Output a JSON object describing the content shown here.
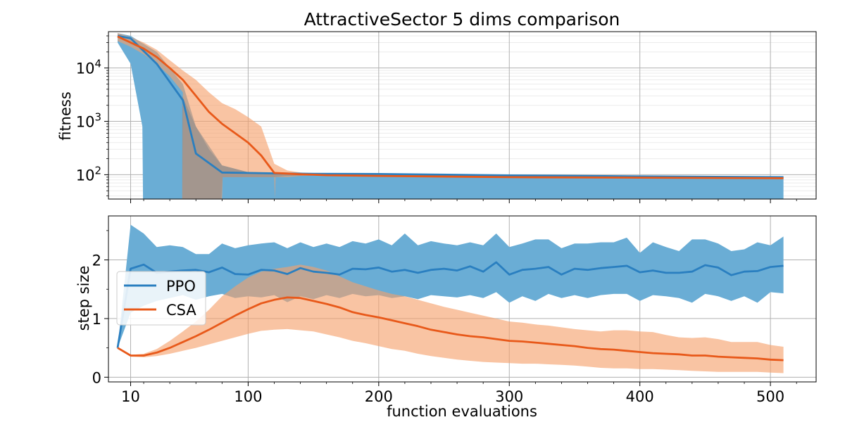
{
  "figure": {
    "title": "AttractiveSector 5 dims comparison",
    "xlabel": "function evaluations"
  },
  "chart_data": [
    {
      "type": "line",
      "name": "fitness panel",
      "ylabel": "fitness",
      "yscale": "log",
      "xlim": [
        -7,
        535
      ],
      "ylim": [
        35,
        48000
      ],
      "xticks": [
        10,
        100,
        200,
        300,
        400,
        500
      ],
      "xtick_labels": [
        "",
        "",
        "",
        "",
        "",
        ""
      ],
      "yticks": [
        100,
        1000,
        10000
      ],
      "ytick_labels": [
        {
          "base": "10",
          "exp": "2"
        },
        {
          "base": "10",
          "exp": "3"
        },
        {
          "base": "10",
          "exp": "4"
        }
      ],
      "grid": true,
      "series": [
        {
          "name": "PPO",
          "color": "#2a7fc0",
          "band_color": "#6aadd5",
          "band_opacity": 1,
          "mean": {
            "x": [
              0,
              10,
              30,
              50,
              60,
              80,
              100,
              120,
              150,
              200,
              300,
              400,
              510
            ],
            "y": [
              40000,
              36000,
              12000,
              2500,
              250,
              110,
              108,
              106,
              104,
              103,
              97,
              93,
              90
            ]
          },
          "upper": {
            "x": [
              0,
              10,
              30,
              50,
              60,
              80,
              100,
              150,
              300,
              510
            ],
            "y": [
              45000,
              40000,
              20000,
              5000,
              800,
              150,
              112,
              106,
              100,
              92
            ]
          },
          "lower": {
            "x": [
              0,
              10,
              19,
              19.5,
              510
            ],
            "y": [
              30000,
              12000,
              800,
              1,
              1
            ]
          }
        },
        {
          "name": "CSA",
          "color": "#e8591a",
          "band_color": "#f59f6b",
          "band_opacity": 0.62,
          "mean": {
            "x": [
              0,
              10,
              20,
              30,
              40,
              50,
              60,
              70,
              80,
              90,
              100,
              110,
              120,
              130,
              140,
              150,
              160,
              200,
              300,
              400,
              510
            ],
            "y": [
              39000,
              30000,
              23000,
              16000,
              10000,
              6000,
              3000,
              1500,
              900,
              600,
              400,
              230,
              108,
              105,
              102,
              100,
              98,
              95,
              90,
              88,
              86
            ]
          },
          "upper": {
            "x": [
              0,
              10,
              20,
              30,
              40,
              50,
              60,
              70,
              80,
              90,
              100,
              110,
              120,
              130,
              140,
              150,
              160,
              200,
              300,
              400,
              510
            ],
            "y": [
              45000,
              38000,
              30000,
              22000,
              14000,
              9000,
              6000,
              3500,
              2200,
              1700,
              1200,
              800,
              160,
              120,
              110,
              105,
              102,
              100,
              95,
              92,
              90
            ]
          },
          "lower": {
            "x": [
              0,
              10,
              20,
              30,
              40,
              50,
              49.5,
              50,
              80,
              80.5,
              81,
              120,
              120.5,
              121,
              130,
              140,
              150,
              160,
              200,
              300,
              400,
              510
            ],
            "y": [
              32000,
              25000,
              18000,
              12000,
              7000,
              3500,
              1,
              1,
              1,
              90,
              90,
              90,
              1,
              90,
              90,
              95,
              97,
              96,
              92,
              88,
              85,
              83
            ]
          }
        }
      ],
      "gray_overlap": {
        "color": "#8a8a8a",
        "opacity": 0.55,
        "upper": {
          "x": [
            49.5,
            60,
            70,
            80,
            100,
            150,
            510
          ],
          "y": [
            3000,
            800,
            300,
            150,
            112,
            106,
            92
          ]
        },
        "lower": {
          "x": [
            49.5,
            79.5,
            80.5,
            100,
            120,
            130,
            150,
            510
          ],
          "y": [
            1,
            1,
            90,
            90,
            90,
            95,
            98,
            85
          ]
        }
      }
    },
    {
      "type": "line",
      "name": "step size panel",
      "ylabel": "step size",
      "yscale": "linear",
      "xlim": [
        -7,
        535
      ],
      "ylim": [
        -0.08,
        2.75
      ],
      "xticks": [
        10,
        100,
        200,
        300,
        400,
        500
      ],
      "xtick_labels": [
        "10",
        "100",
        "200",
        "300",
        "400",
        "500"
      ],
      "yticks": [
        0,
        1,
        2
      ],
      "ytick_labels": [
        "0",
        "1",
        "2"
      ],
      "grid": true,
      "legend": {
        "position": "center-left",
        "entries": [
          "PPO",
          "CSA"
        ]
      },
      "series": [
        {
          "name": "PPO",
          "color": "#2a7fc0",
          "band_color": "#6aadd5",
          "band_opacity": 1,
          "mean": {
            "x": [
              0,
              10,
              20,
              30,
              40,
              50,
              60,
              70,
              80,
              90,
              100,
              110,
              120,
              130,
              140,
              150,
              160,
              170,
              180,
              190,
              200,
              210,
              220,
              230,
              240,
              250,
              260,
              270,
              280,
              290,
              300,
              310,
              320,
              330,
              340,
              350,
              360,
              370,
              380,
              390,
              400,
              410,
              420,
              430,
              440,
              450,
              460,
              470,
              480,
              490,
              500,
              510
            ],
            "y": [
              0.5,
              1.85,
              1.92,
              1.78,
              1.8,
              1.82,
              1.83,
              1.79,
              1.87,
              1.76,
              1.75,
              1.83,
              1.82,
              1.76,
              1.86,
              1.8,
              1.78,
              1.75,
              1.85,
              1.84,
              1.87,
              1.8,
              1.83,
              1.78,
              1.83,
              1.85,
              1.82,
              1.89,
              1.8,
              1.96,
              1.75,
              1.83,
              1.85,
              1.88,
              1.75,
              1.85,
              1.83,
              1.86,
              1.88,
              1.9,
              1.79,
              1.82,
              1.78,
              1.78,
              1.8,
              1.91,
              1.87,
              1.74,
              1.8,
              1.81,
              1.88,
              1.9
            ]
          },
          "upper": {
            "x": [
              0,
              10,
              20,
              30,
              40,
              50,
              60,
              70,
              80,
              90,
              100,
              110,
              120,
              130,
              140,
              150,
              160,
              170,
              180,
              190,
              200,
              210,
              220,
              230,
              240,
              250,
              260,
              270,
              280,
              290,
              300,
              310,
              320,
              330,
              340,
              350,
              360,
              370,
              380,
              390,
              400,
              410,
              420,
              430,
              440,
              450,
              460,
              470,
              480,
              490,
              500,
              510
            ],
            "y": [
              0.5,
              2.6,
              2.45,
              2.22,
              2.25,
              2.22,
              2.1,
              2.1,
              2.28,
              2.2,
              2.25,
              2.28,
              2.3,
              2.2,
              2.3,
              2.22,
              2.28,
              2.22,
              2.32,
              2.28,
              2.35,
              2.25,
              2.45,
              2.25,
              2.32,
              2.28,
              2.25,
              2.3,
              2.25,
              2.45,
              2.22,
              2.28,
              2.35,
              2.35,
              2.2,
              2.28,
              2.28,
              2.3,
              2.3,
              2.38,
              2.12,
              2.3,
              2.22,
              2.15,
              2.35,
              2.35,
              2.28,
              2.15,
              2.18,
              2.3,
              2.25,
              2.4
            ]
          },
          "lower": {
            "x": [
              0,
              10,
              20,
              30,
              40,
              50,
              60,
              70,
              80,
              90,
              100,
              110,
              120,
              130,
              140,
              150,
              160,
              170,
              180,
              190,
              200,
              210,
              220,
              230,
              240,
              250,
              260,
              270,
              280,
              290,
              300,
              310,
              320,
              330,
              340,
              350,
              360,
              370,
              380,
              390,
              400,
              410,
              420,
              430,
              440,
              450,
              460,
              470,
              480,
              490,
              500,
              510
            ],
            "y": [
              0.5,
              1.1,
              1.22,
              1.3,
              1.35,
              1.4,
              1.32,
              1.38,
              1.42,
              1.35,
              1.38,
              1.36,
              1.4,
              1.28,
              1.38,
              1.33,
              1.4,
              1.35,
              1.42,
              1.38,
              1.4,
              1.35,
              1.38,
              1.33,
              1.4,
              1.38,
              1.36,
              1.4,
              1.35,
              1.45,
              1.27,
              1.38,
              1.3,
              1.42,
              1.35,
              1.4,
              1.35,
              1.4,
              1.42,
              1.42,
              1.3,
              1.4,
              1.38,
              1.35,
              1.27,
              1.42,
              1.38,
              1.3,
              1.38,
              1.27,
              1.45,
              1.43
            ]
          }
        },
        {
          "name": "CSA",
          "color": "#e8591a",
          "band_color": "#f59f6b",
          "band_opacity": 0.62,
          "mean": {
            "x": [
              0,
              10,
              20,
              30,
              40,
              50,
              60,
              70,
              80,
              90,
              100,
              110,
              120,
              130,
              140,
              150,
              160,
              170,
              180,
              190,
              200,
              210,
              220,
              230,
              240,
              250,
              260,
              270,
              280,
              290,
              300,
              310,
              320,
              330,
              340,
              350,
              360,
              370,
              380,
              390,
              400,
              410,
              420,
              430,
              440,
              450,
              460,
              470,
              480,
              490,
              500,
              510
            ],
            "y": [
              0.5,
              0.37,
              0.37,
              0.42,
              0.5,
              0.6,
              0.7,
              0.81,
              0.93,
              1.05,
              1.16,
              1.26,
              1.32,
              1.36,
              1.35,
              1.3,
              1.25,
              1.19,
              1.11,
              1.06,
              1.02,
              0.97,
              0.92,
              0.87,
              0.81,
              0.77,
              0.73,
              0.7,
              0.68,
              0.65,
              0.62,
              0.61,
              0.59,
              0.57,
              0.55,
              0.53,
              0.5,
              0.48,
              0.47,
              0.45,
              0.43,
              0.41,
              0.4,
              0.39,
              0.37,
              0.37,
              0.35,
              0.34,
              0.33,
              0.32,
              0.3,
              0.29
            ]
          },
          "upper": {
            "x": [
              0,
              10,
              20,
              30,
              40,
              50,
              60,
              70,
              80,
              90,
              100,
              110,
              120,
              130,
              140,
              150,
              160,
              170,
              180,
              190,
              200,
              210,
              220,
              230,
              240,
              250,
              260,
              270,
              280,
              290,
              300,
              310,
              320,
              330,
              340,
              350,
              360,
              370,
              380,
              390,
              400,
              410,
              420,
              430,
              440,
              450,
              460,
              470,
              480,
              490,
              500,
              510
            ],
            "y": [
              0.5,
              0.38,
              0.4,
              0.48,
              0.62,
              0.78,
              0.95,
              1.15,
              1.38,
              1.55,
              1.7,
              1.8,
              1.85,
              1.88,
              1.92,
              1.88,
              1.82,
              1.72,
              1.62,
              1.55,
              1.48,
              1.42,
              1.38,
              1.32,
              1.26,
              1.2,
              1.15,
              1.1,
              1.05,
              1.0,
              0.95,
              0.93,
              0.9,
              0.88,
              0.85,
              0.82,
              0.8,
              0.78,
              0.8,
              0.8,
              0.78,
              0.77,
              0.72,
              0.68,
              0.67,
              0.68,
              0.65,
              0.6,
              0.6,
              0.6,
              0.55,
              0.52
            ]
          },
          "lower": {
            "x": [
              0,
              10,
              20,
              30,
              40,
              50,
              60,
              70,
              80,
              90,
              100,
              110,
              120,
              130,
              140,
              150,
              160,
              170,
              180,
              190,
              200,
              210,
              220,
              230,
              240,
              250,
              260,
              270,
              280,
              290,
              300,
              310,
              320,
              330,
              340,
              350,
              360,
              370,
              380,
              390,
              400,
              410,
              420,
              430,
              440,
              450,
              460,
              470,
              480,
              490,
              500,
              510
            ],
            "y": [
              0.5,
              0.35,
              0.34,
              0.36,
              0.4,
              0.45,
              0.5,
              0.56,
              0.62,
              0.68,
              0.74,
              0.79,
              0.81,
              0.82,
              0.8,
              0.78,
              0.73,
              0.68,
              0.62,
              0.58,
              0.53,
              0.48,
              0.45,
              0.4,
              0.36,
              0.33,
              0.3,
              0.28,
              0.26,
              0.25,
              0.24,
              0.23,
              0.23,
              0.22,
              0.21,
              0.2,
              0.18,
              0.16,
              0.15,
              0.15,
              0.14,
              0.14,
              0.13,
              0.12,
              0.11,
              0.1,
              0.09,
              0.09,
              0.09,
              0.09,
              0.08,
              0.07
            ]
          }
        }
      ]
    }
  ]
}
